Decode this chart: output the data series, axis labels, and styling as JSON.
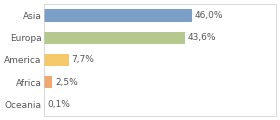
{
  "categories": [
    "Asia",
    "Europa",
    "America",
    "Africa",
    "Oceania"
  ],
  "values": [
    46.0,
    43.6,
    7.7,
    2.5,
    0.1
  ],
  "labels": [
    "46,0%",
    "43,6%",
    "7,7%",
    "2,5%",
    "0,1%"
  ],
  "bar_colors": [
    "#7b9fc7",
    "#b5c98e",
    "#f5c96a",
    "#f0a870",
    "#e8e8e8"
  ],
  "background_color": "#ffffff",
  "text_color": "#555555",
  "label_fontsize": 6.5,
  "tick_fontsize": 6.5,
  "bar_height": 0.55,
  "xlim": 72,
  "figsize": [
    2.8,
    1.2
  ],
  "dpi": 100
}
